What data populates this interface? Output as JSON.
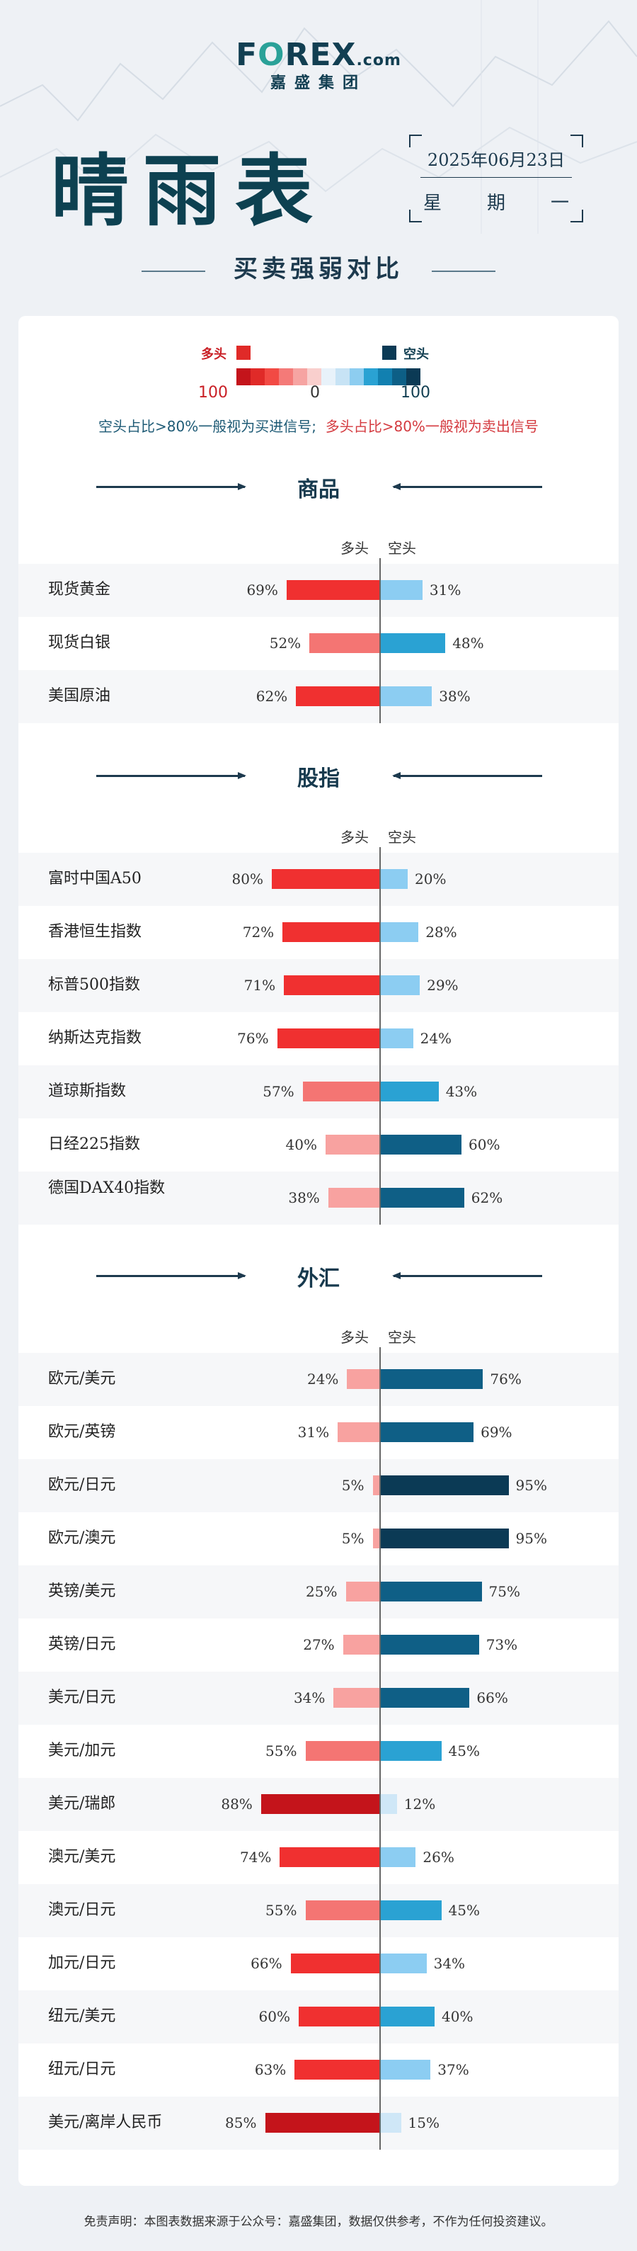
{
  "header": {
    "brand_prefix": "F",
    "brand_o": "O",
    "brand_rest": "REX",
    "brand_suffix": ".com",
    "brand_cn": "嘉盛集团",
    "title": "晴雨表",
    "date": "2025年06月23日",
    "weekday": [
      "星",
      "期",
      "一"
    ],
    "subtitle": "买卖强弱对比"
  },
  "legend": {
    "long_label": "多头",
    "short_label": "空头",
    "left_num": "100",
    "mid_num": "0",
    "right_num": "100",
    "gradient": [
      "#c4141b",
      "#e02a28",
      "#f24a44",
      "#f47a78",
      "#f6a4a2",
      "#f9cfcd",
      "#e8f2fa",
      "#c7e3f5",
      "#8dcdf0",
      "#2aa2d3",
      "#1280b0",
      "#0d5f86",
      "#0b3a55"
    ],
    "buy_signal": "空头占比>80%一般视为买进信号;",
    "sell_signal": "多头占比>80%一般视为卖出信号"
  },
  "colors": {
    "long": [
      "#c4141b",
      "#f03030",
      "#f47573",
      "#f8a2a0"
    ],
    "short": [
      "#0b3a55",
      "#0f5f86",
      "#2aa2d3",
      "#8ccdf2",
      "#cfe7f7"
    ]
  },
  "column_headers": {
    "long": "多头",
    "short": "空头"
  },
  "footer": "免责声明：本图表数据来源于公众号：嘉盛集团，数据仅供参考，不作为任何投资建议。",
  "chart_data": [
    {
      "type": "bar",
      "title": "商品",
      "categories": [
        "现货黄金",
        "现货白银",
        "美国原油"
      ],
      "series": [
        {
          "name": "多头",
          "values": [
            69,
            52,
            62
          ]
        },
        {
          "name": "空头",
          "values": [
            31,
            48,
            38
          ]
        }
      ],
      "ylim": [
        0,
        100
      ]
    },
    {
      "type": "bar",
      "title": "股指",
      "categories": [
        "富时中国A50",
        "香港恒生指数",
        "标普500指数",
        "纳斯达克指数",
        "道琼斯指数",
        "日经225指数",
        "德国DAX40指数"
      ],
      "series": [
        {
          "name": "多头",
          "values": [
            80,
            72,
            71,
            76,
            57,
            40,
            38
          ]
        },
        {
          "name": "空头",
          "values": [
            20,
            28,
            29,
            24,
            43,
            60,
            62
          ]
        }
      ],
      "ylim": [
        0,
        100
      ]
    },
    {
      "type": "bar",
      "title": "外汇",
      "categories": [
        "欧元/美元",
        "欧元/英镑",
        "欧元/日元",
        "欧元/澳元",
        "英镑/美元",
        "英镑/日元",
        "美元/日元",
        "美元/加元",
        "美元/瑞郎",
        "澳元/美元",
        "澳元/日元",
        "加元/日元",
        "纽元/美元",
        "纽元/日元",
        "美元/离岸人民币"
      ],
      "series": [
        {
          "name": "多头",
          "values": [
            24,
            31,
            5,
            5,
            25,
            27,
            34,
            55,
            88,
            74,
            55,
            66,
            60,
            63,
            85
          ]
        },
        {
          "name": "空头",
          "values": [
            76,
            69,
            95,
            95,
            75,
            73,
            66,
            45,
            12,
            26,
            45,
            34,
            40,
            37,
            15
          ]
        }
      ],
      "ylim": [
        0,
        100
      ]
    }
  ]
}
